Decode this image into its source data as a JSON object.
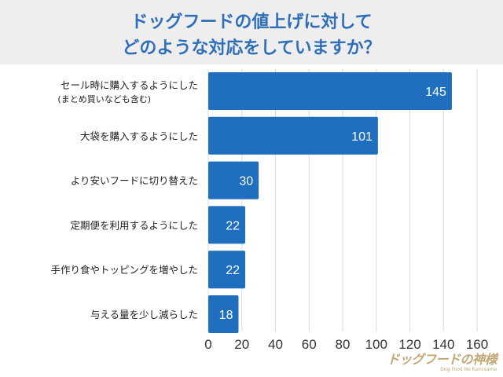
{
  "header": {
    "title_line1": "ドッグフードの値上げに対して",
    "title_line2": "どのような対応をしていますか？"
  },
  "chart_data": {
    "type": "bar",
    "orientation": "horizontal",
    "title": "ドッグフードの値上げに対して どのような対応をしていますか？",
    "categories": [
      "セール時に購入するようにした(まとめ買いなども含む)",
      "大袋を購入するようにした",
      "より安いフードに切り替えた",
      "定期便を利用するようにした",
      "手作り食やトッピングを増やした",
      "与える量を少し減らした"
    ],
    "category_lines": [
      [
        "セール時に購入するようにした",
        "(まとめ買いなども含む)"
      ],
      [
        "大袋を購入するようにした"
      ],
      [
        "より安いフードに切り替えた"
      ],
      [
        "定期便を利用するようにした"
      ],
      [
        "手作り食やトッピングを増やした"
      ],
      [
        "与える量を少し減らした"
      ]
    ],
    "values": [
      145,
      101,
      30,
      22,
      22,
      18
    ],
    "xlim": [
      0,
      160
    ],
    "xticks": [
      0,
      20,
      40,
      60,
      80,
      100,
      120,
      140,
      160
    ],
    "xlabel": "",
    "ylabel": "",
    "grid": true,
    "colors": {
      "bar": "#1f6fbe",
      "grid": "#d9d9d9",
      "title": "#2f6eb8",
      "title_bg": "#eeeeee"
    }
  },
  "watermark": {
    "main": "ドッグフードの神様",
    "sub": "Dog Food No Kamisama"
  }
}
